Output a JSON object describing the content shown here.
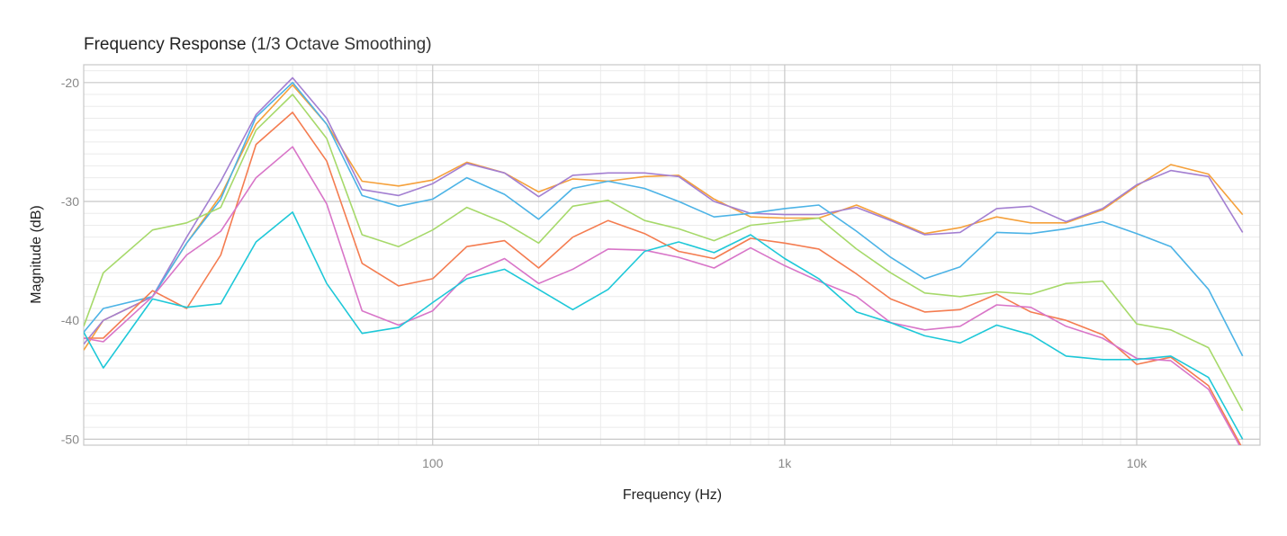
{
  "chart_data": {
    "type": "line",
    "title": "Frequency Response",
    "subtitle": "(1/3 Octave Smoothing)",
    "xlabel": "Frequency (Hz)",
    "ylabel": "Magnitude (dB)",
    "log_x": true,
    "grid": true,
    "xlim": [
      10.2,
      22400
    ],
    "ylim": [
      -50.5,
      -18.5
    ],
    "xticks": [
      {
        "value": 100,
        "label": "100"
      },
      {
        "value": 1000,
        "label": "1k"
      },
      {
        "value": 10000,
        "label": "10k"
      }
    ],
    "yticks": [
      -20,
      -30,
      -40,
      -50
    ],
    "xminor": [
      20,
      30,
      40,
      50,
      60,
      70,
      80,
      90,
      200,
      300,
      400,
      500,
      600,
      700,
      800,
      900,
      2000,
      3000,
      4000,
      5000,
      6000,
      7000,
      8000,
      9000,
      20000
    ],
    "yminor": [
      -19,
      -21,
      -22,
      -23,
      -24,
      -25,
      -26,
      -27,
      -28,
      -29,
      -31,
      -32,
      -33,
      -34,
      -35,
      -36,
      -37,
      -38,
      -39,
      -41,
      -42,
      -43,
      -44,
      -45,
      -46,
      -47,
      -48,
      -49
    ],
    "x": [
      10.2,
      11.6,
      16,
      20,
      25,
      31.5,
      40,
      50,
      63,
      80,
      100,
      125,
      160,
      200,
      250,
      315,
      400,
      500,
      630,
      800,
      1000,
      1250,
      1600,
      2000,
      2500,
      3150,
      4000,
      5000,
      6300,
      8000,
      10000,
      12500,
      16000,
      20000
    ],
    "series": [
      {
        "color": "#f5a03a",
        "values": [
          -42.5,
          -40,
          -38,
          -33.5,
          -29.5,
          -23.5,
          -20.2,
          -23.5,
          -28.3,
          -28.7,
          -28.2,
          -26.7,
          -27.6,
          -29.2,
          -28.1,
          -28.3,
          -27.9,
          -27.8,
          -29.8,
          -31.3,
          -31.4,
          -31.4,
          -30.3,
          -31.5,
          -32.7,
          -32.2,
          -31.3,
          -31.8,
          -31.8,
          -30.7,
          -28.7,
          -26.9,
          -27.7,
          -31.1
        ]
      },
      {
        "color": "#a37fd1",
        "values": [
          -42,
          -40,
          -38,
          -33,
          -28.3,
          -22.7,
          -19.6,
          -23,
          -29,
          -29.5,
          -28.5,
          -26.8,
          -27.6,
          -29.6,
          -27.8,
          -27.6,
          -27.6,
          -27.9,
          -30,
          -31,
          -31.1,
          -31.1,
          -30.5,
          -31.6,
          -32.8,
          -32.6,
          -30.6,
          -30.4,
          -31.7,
          -30.6,
          -28.6,
          -27.4,
          -27.9,
          -32.6
        ]
      },
      {
        "color": "#4cb3e6",
        "values": [
          -41,
          -39,
          -38,
          -33.5,
          -29.8,
          -22.9,
          -20,
          -23.5,
          -29.5,
          -30.4,
          -29.8,
          -28,
          -29.4,
          -31.5,
          -28.9,
          -28.3,
          -28.9,
          -30,
          -31.3,
          -31,
          -30.6,
          -30.3,
          -32.5,
          -34.7,
          -36.5,
          -35.5,
          -32.6,
          -32.7,
          -32.3,
          -31.7,
          -32.7,
          -33.8,
          -37.4,
          -43
        ]
      },
      {
        "color": "#a6d96a",
        "values": [
          -40.5,
          -36,
          -32.4,
          -31.8,
          -30.5,
          -24,
          -21,
          -24.7,
          -32.8,
          -33.8,
          -32.4,
          -30.5,
          -31.8,
          -33.5,
          -30.4,
          -29.9,
          -31.6,
          -32.3,
          -33.3,
          -32,
          -31.7,
          -31.4,
          -34,
          -36,
          -37.7,
          -38,
          -37.6,
          -37.8,
          -36.9,
          -36.7,
          -40.3,
          -40.8,
          -42.3,
          -47.6
        ]
      },
      {
        "color": "#f47c50",
        "values": [
          -41.5,
          -41.5,
          -37.5,
          -39,
          -34.5,
          -25.2,
          -22.5,
          -26.6,
          -35.2,
          -37.1,
          -36.5,
          -33.8,
          -33.3,
          -35.6,
          -33,
          -31.6,
          -32.7,
          -34.2,
          -34.8,
          -33.1,
          -33.5,
          -34,
          -36.1,
          -38.2,
          -39.3,
          -39.1,
          -37.8,
          -39.3,
          -40,
          -41.2,
          -43.7,
          -43.1,
          -45.5,
          -50.8
        ]
      },
      {
        "color": "#d875c8",
        "values": [
          -41.5,
          -41.8,
          -38,
          -34.5,
          -32.5,
          -28,
          -25.4,
          -30.2,
          -39.2,
          -40.4,
          -39.2,
          -36.2,
          -34.8,
          -36.9,
          -35.7,
          -34,
          -34.1,
          -34.7,
          -35.6,
          -33.9,
          -35.4,
          -36.7,
          -38,
          -40.2,
          -40.8,
          -40.5,
          -38.7,
          -38.9,
          -40.5,
          -41.5,
          -43.2,
          -43.4,
          -45.8,
          -51
        ]
      },
      {
        "color": "#1ec8d8",
        "values": [
          -41,
          -44,
          -38.2,
          -38.9,
          -38.6,
          -33.4,
          -30.9,
          -36.9,
          -41.1,
          -40.6,
          -38.5,
          -36.5,
          -35.7,
          -37.4,
          -39.1,
          -37.4,
          -34.2,
          -33.4,
          -34.3,
          -32.8,
          -34.8,
          -36.5,
          -39.3,
          -40.2,
          -41.3,
          -41.9,
          -40.4,
          -41.2,
          -43,
          -43.3,
          -43.3,
          -43,
          -44.8,
          -50
        ]
      }
    ]
  }
}
